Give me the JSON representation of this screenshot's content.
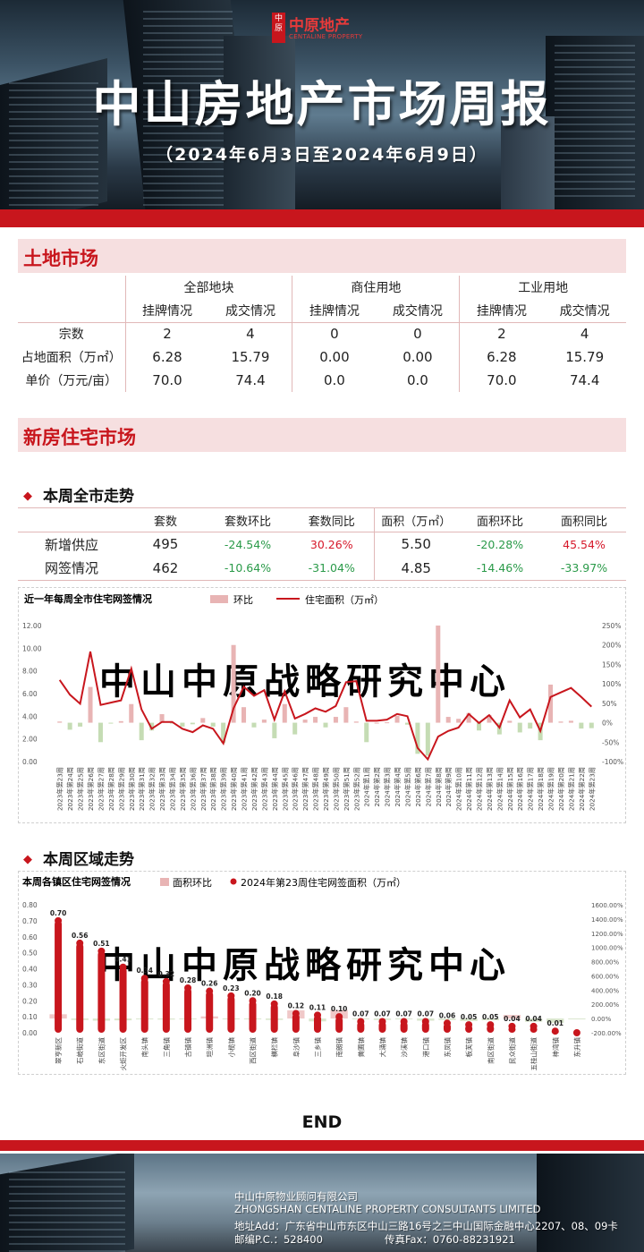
{
  "brand": {
    "logo_badge": "中原",
    "name_cn": "中原地产",
    "name_en": "CENTALINE PROPERTY"
  },
  "report": {
    "title": "中山房地产市场周报",
    "date_range": "（2024年6月3日至2024年6月9日）"
  },
  "colors": {
    "brand_red": "#c8161d",
    "section_bg": "#f6dfe0",
    "positive_green": "#2a9a49",
    "negative_red": "#d6182a",
    "bar_pink": "#e8b4b4",
    "bar_green": "#c5dcb4"
  },
  "land_market": {
    "section_title": "土地市场",
    "groups": [
      "全部地块",
      "商住用地",
      "工业用地"
    ],
    "sub_headers": [
      "挂牌情况",
      "成交情况",
      "挂牌情况",
      "成交情况",
      "挂牌情况",
      "成交情况"
    ],
    "rows": [
      {
        "label": "宗数",
        "values": [
          "2",
          "4",
          "0",
          "0",
          "2",
          "4"
        ]
      },
      {
        "label": "占地面积（万㎡）",
        "values": [
          "6.28",
          "15.79",
          "0.00",
          "0.00",
          "6.28",
          "15.79"
        ]
      },
      {
        "label": "单价（万元/亩）",
        "values": [
          "70.0",
          "74.4",
          "0.0",
          "0.0",
          "70.0",
          "74.4"
        ]
      }
    ]
  },
  "new_home_market": {
    "section_title": "新房住宅市场",
    "city_trend": {
      "subtitle": "本周全市走势",
      "headers": [
        "套数",
        "套数环比",
        "套数同比",
        "面积（万㎡）",
        "面积环比",
        "面积同比"
      ],
      "rows": [
        {
          "label": "新增供应",
          "units": "495",
          "units_mom": "-24.54%",
          "units_yoy": "30.26%",
          "area": "5.50",
          "area_mom": "-20.28%",
          "area_yoy": "45.54%"
        },
        {
          "label": "网签情况",
          "units": "462",
          "units_mom": "-10.64%",
          "units_yoy": "-31.04%",
          "area": "4.85",
          "area_mom": "-14.46%",
          "area_yoy": "-33.97%"
        }
      ]
    },
    "region_trend": {
      "subtitle": "本周区域走势"
    }
  },
  "chart_data": [
    {
      "type": "bar+line",
      "title": "近一年每周全市住宅网签情况",
      "legend": [
        "环比",
        "住宅面积（万㎡）"
      ],
      "watermark": "中山中原战略研究中心",
      "left_axis": {
        "ylim": [
          0,
          12
        ],
        "ticks": [
          "0.00",
          "2.00",
          "4.00",
          "6.00",
          "8.00",
          "10.00",
          "12.00"
        ]
      },
      "right_axis": {
        "ylim": [
          -100,
          250
        ],
        "ticks": [
          "-100%",
          "-50%",
          "0%",
          "50%",
          "100%",
          "150%",
          "200%",
          "250%"
        ]
      },
      "categories": [
        "2023年第23周",
        "2023年第24周",
        "2023年第25周",
        "2023年第26周",
        "2023年第27周",
        "2023年第28周",
        "2023年第29周",
        "2023年第30周",
        "2023年第31周",
        "2023年第32周",
        "2023年第33周",
        "2023年第34周",
        "2023年第35周",
        "2023年第36周",
        "2023年第37周",
        "2023年第38周",
        "2023年第39周",
        "2023年第40周",
        "2023年第41周",
        "2023年第42周",
        "2023年第43周",
        "2023年第44周",
        "2023年第45周",
        "2023年第46周",
        "2023年第47周",
        "2023年第48周",
        "2023年第49周",
        "2023年第50周",
        "2023年第51周",
        "2023年第52周",
        "2024年第1周",
        "2024年第2周",
        "2024年第3周",
        "2024年第4周",
        "2024年第5周",
        "2024年第6周",
        "2024年第7周",
        "2024年第8周",
        "2024年第9周",
        "2024年第10周",
        "2024年第11周",
        "2024年第12周",
        "2024年第13周",
        "2024年第14周",
        "2024年第15周",
        "2024年第16周",
        "2024年第17周",
        "2024年第18周",
        "2024年第19周",
        "2024年第20周",
        "2024年第21周",
        "2024年第22周",
        "2024年第23周"
      ],
      "series": [
        {
          "name": "环比",
          "axis": "right",
          "values": [
            3,
            -18,
            -10,
            92,
            -50,
            -2,
            4,
            48,
            -45,
            -20,
            22,
            -2,
            -10,
            -4,
            12,
            -10,
            -52,
            200,
            40,
            -12,
            8,
            -40,
            48,
            -30,
            8,
            15,
            -12,
            15,
            40,
            3,
            -50,
            0,
            1,
            18,
            -5,
            -80,
            -85,
            250,
            15,
            10,
            25,
            -20,
            20,
            -30,
            5,
            -25,
            -15,
            -45,
            98,
            3,
            5,
            -15,
            -14
          ]
        },
        {
          "name": "住宅面积（万㎡）",
          "axis": "left",
          "values": [
            7.2,
            5.9,
            5.1,
            9.7,
            5.0,
            5.2,
            5.4,
            8.2,
            4.6,
            2.9,
            3.5,
            3.5,
            2.9,
            2.6,
            3.2,
            2.9,
            1.6,
            4.7,
            6.6,
            5.8,
            6.3,
            3.7,
            6.2,
            3.8,
            4.2,
            4.7,
            4.4,
            4.9,
            7.0,
            7.1,
            3.6,
            3.6,
            3.7,
            4.2,
            4.0,
            1.2,
            0.2,
            2.2,
            2.7,
            3.0,
            4.2,
            3.4,
            4.1,
            3.0,
            5.4,
            3.9,
            4.6,
            2.7,
            5.7,
            6.1,
            6.5,
            5.7,
            4.85
          ]
        }
      ]
    },
    {
      "type": "bar+scatter",
      "title": "本周各镇区住宅网签情况",
      "legend": [
        "面积环比",
        "2024年第23周住宅网签面积（万㎡）"
      ],
      "watermark": "中山中原战略研究中心",
      "left_axis": {
        "ylim": [
          0,
          0.8
        ],
        "ticks": [
          "0.00",
          "0.10",
          "0.20",
          "0.30",
          "0.40",
          "0.50",
          "0.60",
          "0.70",
          "0.80"
        ]
      },
      "right_axis": {
        "ylim": [
          -200,
          1600
        ],
        "ticks": [
          "-200.00%",
          "0.00%",
          "200.00%",
          "400.00%",
          "600.00%",
          "800.00%",
          "1000.00%",
          "1200.00%",
          "1400.00%",
          "1600.00%"
        ]
      },
      "categories": [
        "翠亨新区",
        "石岐街道",
        "东区街道",
        "火炬开发区",
        "南头镇",
        "三角镇",
        "古镇镇",
        "坦洲镇",
        "小榄镇",
        "西区街道",
        "横栏镇",
        "阜沙镇",
        "三乡镇",
        "南朗镇",
        "黄圃镇",
        "大涌镇",
        "沙溪镇",
        "港口镇",
        "东凤镇",
        "板芙镇",
        "南区街道",
        "民众街道",
        "五桂山街道",
        "神湾镇",
        "东升镇"
      ],
      "values": [
        0.7,
        0.56,
        0.51,
        0.41,
        0.34,
        0.32,
        0.28,
        0.26,
        0.23,
        0.2,
        0.18,
        0.12,
        0.11,
        0.1,
        0.07,
        0.07,
        0.07,
        0.07,
        0.06,
        0.05,
        0.05,
        0.04,
        0.04,
        0.01,
        0.0
      ],
      "value_labels": [
        "0.70",
        "0.56",
        "0.51",
        "0.41",
        "0.34",
        "0.32",
        "0.28",
        "0.26",
        "0.23",
        "0.20",
        "0.18",
        "0.12",
        "0.11",
        "0.10",
        "0.07",
        "0.07",
        "0.07",
        "0.07",
        "0.06",
        "0.05",
        "0.05",
        "0.04",
        "0.04",
        "0.01",
        ""
      ],
      "mom_pct": [
        60,
        -20,
        -30,
        -25,
        -10,
        -15,
        -10,
        30,
        -10,
        -5,
        -20,
        115,
        -40,
        120,
        -10,
        -20,
        -10,
        -30,
        -20,
        -35,
        -25,
        50,
        -45,
        -60,
        -5
      ]
    }
  ],
  "end_label": "END",
  "footer": {
    "company_cn": "中山中原物业顾问有限公司",
    "company_en": "ZHONGSHAN CENTALINE PROPERTY CONSULTANTS LIMITED",
    "address": "地址Add：广东省中山市东区中山三路16号之三中山国际金融中心2207、08、09卡",
    "postal": "邮编P.C.：528400",
    "fax": "传真Fax：0760-88231921"
  }
}
